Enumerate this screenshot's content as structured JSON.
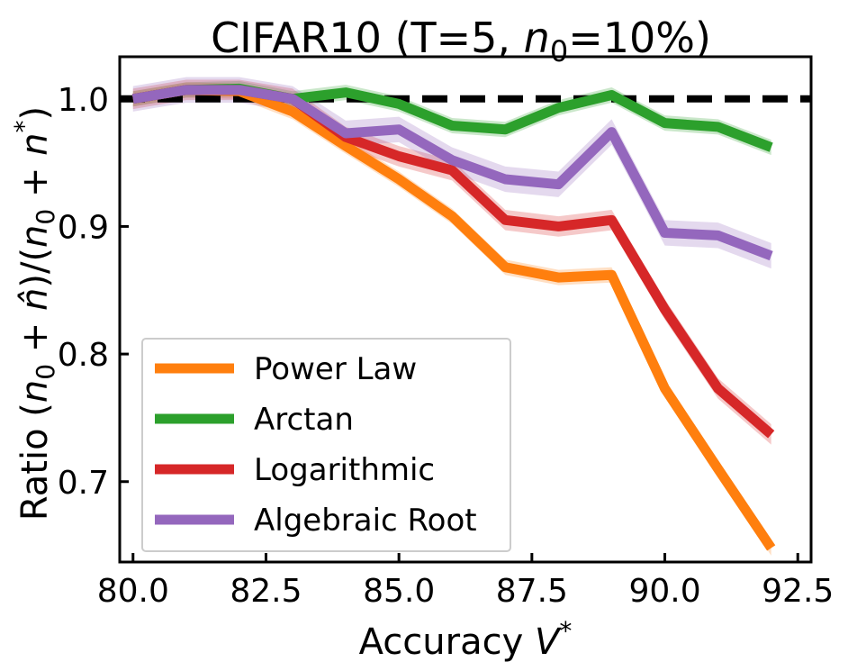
{
  "chart_data": {
    "type": "line",
    "title": "CIFAR10 (T=5, n₀=10%)",
    "title_parts": {
      "main": "CIFAR10 (T=5, ",
      "var": "n",
      "sub": "0",
      "tail": "=10%)"
    },
    "xlabel": "Accuracy V*",
    "xlabel_parts": {
      "main": "Accuracy ",
      "var": "V",
      "sup": "*"
    },
    "ylabel": "Ratio (n₀ + n̂)/(n₀ + n*)",
    "ylabel_parts": {
      "lead": "Ratio (",
      "n": "n",
      "sub0": "0",
      "plus": " + ",
      "nhat": "n̂",
      "mid": ")/(",
      "star": "*",
      "close": ")"
    },
    "xlim": [
      79.75,
      92.75
    ],
    "ylim": [
      0.637,
      1.033
    ],
    "xticks": [
      80.0,
      82.5,
      85.0,
      87.5,
      90.0,
      92.5
    ],
    "xtick_labels": [
      "80.0",
      "82.5",
      "85.0",
      "87.5",
      "90.0",
      "92.5"
    ],
    "yticks": [
      0.7,
      0.8,
      0.9,
      1.0
    ],
    "ytick_labels": [
      "0.7",
      "0.8",
      "0.9",
      "1.0"
    ],
    "x": [
      80,
      81,
      82,
      83,
      84,
      85,
      86,
      87,
      88,
      89,
      90,
      91,
      92
    ],
    "reference_line": {
      "y": 1.0,
      "style": "dashed",
      "color": "#000000"
    },
    "legend_position": "lower-left",
    "series": [
      {
        "name": "Power Law",
        "color": "#ff7f0e",
        "values": [
          1.0,
          1.007,
          1.006,
          0.99,
          0.963,
          0.937,
          0.908,
          0.868,
          0.86,
          0.862,
          0.773,
          0.71,
          0.648
        ],
        "band": 0.006
      },
      {
        "name": "Arctan",
        "color": "#2ca02c",
        "values": [
          1.0,
          1.007,
          1.008,
          1.0,
          1.005,
          0.996,
          0.979,
          0.976,
          0.993,
          1.003,
          0.981,
          0.978,
          0.962
        ],
        "band": 0.006
      },
      {
        "name": "Logarithmic",
        "color": "#d62728",
        "values": [
          1.0,
          1.007,
          1.007,
          1.0,
          0.97,
          0.955,
          0.944,
          0.905,
          0.9,
          0.905,
          0.835,
          0.773,
          0.737
        ],
        "band": 0.008
      },
      {
        "name": "Algebraic Root",
        "color": "#9467bd",
        "values": [
          1.0,
          1.007,
          1.007,
          1.0,
          0.973,
          0.976,
          0.952,
          0.937,
          0.933,
          0.974,
          0.895,
          0.893,
          0.877
        ],
        "band": 0.01
      }
    ]
  }
}
